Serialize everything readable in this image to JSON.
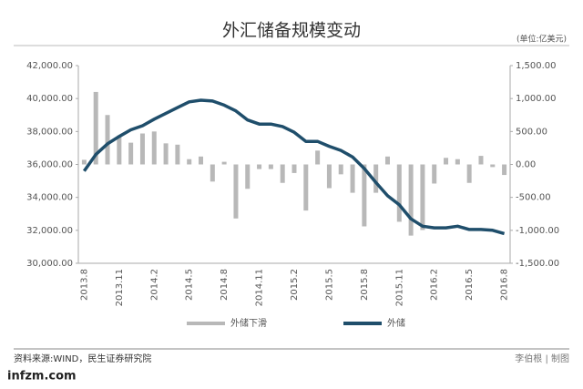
{
  "chart_data": {
    "type": "bar_line",
    "title": "外汇储备规模变动",
    "unit": "(单位:亿美元)",
    "categories": [
      "2013.8",
      null,
      null,
      "2013.11",
      null,
      null,
      "2014.2",
      null,
      null,
      "2014.5",
      null,
      null,
      "2014.8",
      null,
      null,
      "2014.11",
      null,
      null,
      "2015.2",
      null,
      null,
      "2015.5",
      null,
      null,
      "2015.8",
      null,
      null,
      "2015.11",
      null,
      null,
      "2016.2",
      null,
      null,
      "2016.5",
      null,
      null,
      "2016.8"
    ],
    "series": [
      {
        "name": "外储下滑",
        "color": "#b8b8b8",
        "axis": "y2",
        "values": [
          70,
          1100,
          750,
          440,
          330,
          470,
          500,
          320,
          300,
          80,
          120,
          -260,
          40,
          -820,
          -370,
          -70,
          -70,
          -280,
          -130,
          -700,
          210,
          -360,
          -150,
          -430,
          -940,
          -430,
          120,
          -870,
          -1080,
          -995,
          -290,
          100,
          80,
          -280,
          130,
          -40,
          -160
        ]
      },
      {
        "name": "外储",
        "color": "#1f4e6b",
        "axis": "y",
        "values": [
          35600,
          36600,
          37250,
          37700,
          38100,
          38350,
          38750,
          39100,
          39450,
          39800,
          39900,
          39850,
          39600,
          39250,
          38700,
          38450,
          38450,
          38300,
          37950,
          37400,
          37400,
          37100,
          36850,
          36450,
          35750,
          34900,
          34100,
          33550,
          32700,
          32250,
          32150,
          32150,
          32250,
          32050,
          32050,
          32000,
          31800
        ]
      }
    ],
    "ylim": [
      30000,
      42000
    ],
    "yticks": [
      {
        "value": 30000,
        "label": "30,000.00"
      },
      {
        "value": 32000,
        "label": "32,000.00"
      },
      {
        "value": 34000,
        "label": "34,000.00"
      },
      {
        "value": 36000,
        "label": "36,000.00"
      },
      {
        "value": 38000,
        "label": "38,000.00"
      },
      {
        "value": 40000,
        "label": "40,000.00"
      },
      {
        "value": 42000,
        "label": "42,000.00"
      }
    ],
    "y2lim": [
      -1500,
      1500
    ],
    "y2ticks": [
      {
        "value": -1500,
        "label": "-1,500.00"
      },
      {
        "value": -1000,
        "label": "-1,000.00"
      },
      {
        "value": -500,
        "label": "-500.00"
      },
      {
        "value": 0,
        "label": "0.00"
      },
      {
        "value": 500,
        "label": "500.00"
      },
      {
        "value": 1000,
        "label": "1,000.00"
      },
      {
        "value": 1500,
        "label": "1,500.00"
      }
    ],
    "source": "资料来源:WIND，民生证券研究院",
    "credit": "李伯根 | 制图",
    "watermark": "infzm.com"
  }
}
